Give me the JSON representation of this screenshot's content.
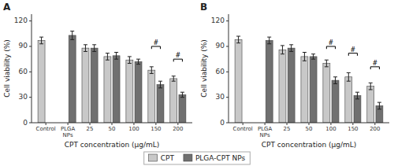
{
  "chart_data": [
    {
      "type": "bar",
      "title": "A",
      "categories": [
        "Control",
        "PLGA\nNPs",
        "25",
        "50",
        "100",
        "150",
        "200"
      ],
      "series": [
        {
          "name": "CPT",
          "color": "#c8c8c8",
          "values": [
            97,
            null,
            88,
            78,
            74,
            62,
            52
          ],
          "errors": [
            4,
            null,
            4,
            4,
            4,
            4,
            3
          ]
        },
        {
          "name": "PLGA-CPT NPs",
          "color": "#707070",
          "values": [
            null,
            103,
            88,
            79,
            72,
            45,
            33
          ],
          "errors": [
            null,
            5,
            4,
            4,
            3,
            4,
            3
          ]
        }
      ],
      "annotations": [
        {
          "category": "150",
          "y": 90,
          "text": "#"
        },
        {
          "category": "200",
          "y": 75,
          "text": "#"
        }
      ],
      "xlabel": "CPT concentration (μg/mL)",
      "ylabel": "Cell viability (%)",
      "ylim": [
        0,
        128
      ],
      "yticks": [
        0,
        30,
        60,
        90,
        120
      ],
      "grid": false,
      "legend": "bottom"
    },
    {
      "type": "bar",
      "title": "B",
      "categories": [
        "Control",
        "PLGA\nNPs",
        "25",
        "50",
        "100",
        "150",
        "200"
      ],
      "series": [
        {
          "name": "CPT",
          "color": "#c8c8c8",
          "values": [
            98,
            null,
            86,
            78,
            70,
            54,
            43
          ],
          "errors": [
            4,
            null,
            5,
            5,
            4,
            5,
            4
          ]
        },
        {
          "name": "PLGA-CPT NPs",
          "color": "#707070",
          "values": [
            null,
            97,
            88,
            78,
            50,
            32,
            20
          ],
          "errors": [
            null,
            4,
            4,
            3,
            4,
            4,
            4
          ]
        }
      ],
      "annotations": [
        {
          "category": "100",
          "y": 90,
          "text": "#"
        },
        {
          "category": "150",
          "y": 82,
          "text": "#"
        },
        {
          "category": "200",
          "y": 66,
          "text": "#"
        }
      ],
      "xlabel": "CPT concentration (μg/mL)",
      "ylabel": "Cell viability (%)",
      "ylim": [
        0,
        128
      ],
      "yticks": [
        0,
        30,
        60,
        90,
        120
      ],
      "grid": false,
      "legend": "bottom"
    }
  ]
}
